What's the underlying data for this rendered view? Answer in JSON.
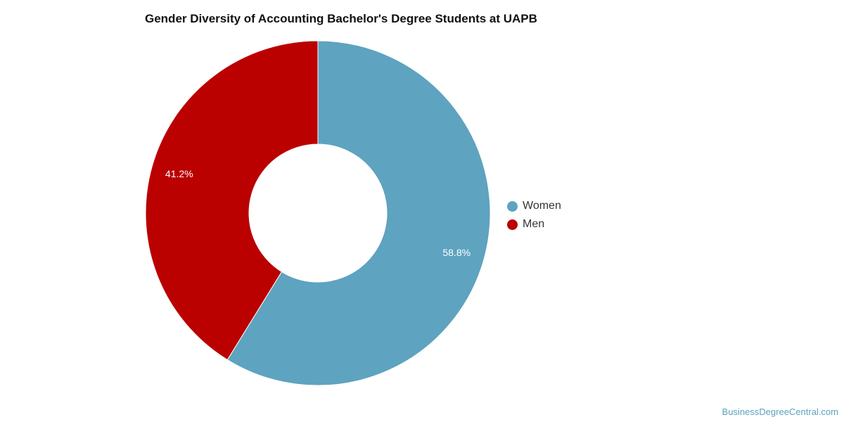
{
  "chart_data": {
    "type": "pie",
    "variant": "donut",
    "title": "Gender Diversity of Accounting Bachelor's Degree Students at UAPB",
    "categories": [
      "Women",
      "Men"
    ],
    "values": [
      58.8,
      41.2
    ],
    "value_labels": [
      "58.8%",
      "41.2%"
    ],
    "colors": [
      "#5ea3bf",
      "#bb0000"
    ],
    "legend_position": "right"
  },
  "watermark": "BusinessDegreeCentral.com"
}
